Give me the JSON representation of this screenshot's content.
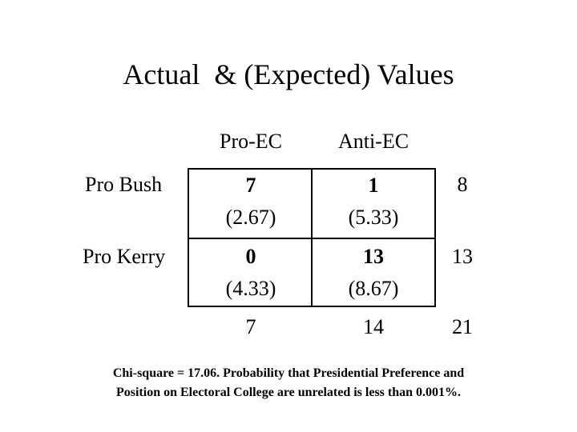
{
  "title": "Actual  & (Expected) Values",
  "columns": [
    "Pro-EC",
    "Anti-EC"
  ],
  "rows": [
    {
      "label": "Pro Bush",
      "cells": [
        {
          "actual": "7",
          "expected": "(2.67)"
        },
        {
          "actual": "1",
          "expected": "(5.33)"
        }
      ],
      "total": "8"
    },
    {
      "label": "Pro Kerry",
      "cells": [
        {
          "actual": "0",
          "expected": "(4.33)"
        },
        {
          "actual": "13",
          "expected": "(8.67)"
        }
      ],
      "total": "13"
    }
  ],
  "column_totals": [
    "7",
    "14"
  ],
  "grand_total": "21",
  "footnote": {
    "line1": "Chi-square = 17.06.  Probability that Presidential Preference and",
    "line2": "Position on Electoral College are unrelated is less than 0.001%."
  }
}
